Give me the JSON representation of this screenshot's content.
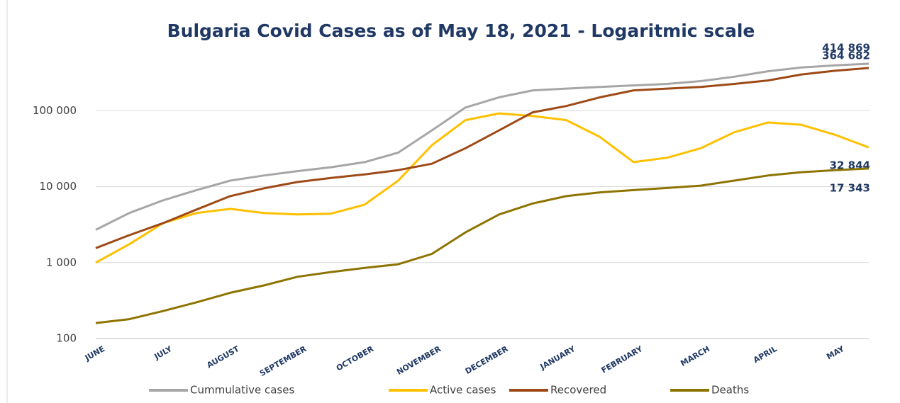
{
  "chart_data": {
    "type": "line",
    "title": "Bulgaria Covid Cases as of May 18, 2021 - Logaritmic scale",
    "categories": [
      "JUNE",
      null,
      "JULY",
      null,
      "AUGUST",
      null,
      "SEPTEMBER",
      null,
      "OCTOBER",
      null,
      "NOVEMBER",
      null,
      "DECEMBER",
      null,
      "JANUARY",
      null,
      "FEBRUARY",
      null,
      "MARCH",
      null,
      "APRIL",
      null,
      "MAY",
      null
    ],
    "series": [
      {
        "name": "Cummulative cases",
        "color": "#a6a6a6",
        "values": [
          2700,
          4500,
          6600,
          9000,
          12000,
          14000,
          16000,
          18000,
          21000,
          28000,
          55000,
          110000,
          150000,
          185000,
          195000,
          205000,
          215000,
          225000,
          245000,
          280000,
          330000,
          370000,
          395000,
          414869
        ],
        "value_labels": [
          null,
          null,
          null,
          null,
          null,
          null,
          null,
          null,
          null,
          null,
          null,
          null,
          null,
          null,
          null,
          null,
          null,
          null,
          null,
          null,
          null,
          null,
          null,
          "414 869"
        ]
      },
      {
        "name": "Active cases",
        "color": "#ffc000",
        "values": [
          1000,
          1750,
          3300,
          4500,
          5100,
          4500,
          4300,
          4400,
          5800,
          12000,
          35000,
          75000,
          92000,
          85000,
          75000,
          45000,
          21000,
          24000,
          32000,
          52000,
          70000,
          65000,
          48000,
          32844
        ],
        "value_labels": [
          null,
          null,
          null,
          null,
          null,
          null,
          null,
          null,
          null,
          null,
          null,
          null,
          null,
          null,
          null,
          null,
          null,
          null,
          null,
          null,
          null,
          null,
          null,
          "32 844"
        ]
      },
      {
        "name": "Recovered",
        "color": "#9e4a17",
        "values": [
          1550,
          2300,
          3300,
          5000,
          7500,
          9500,
          11500,
          13000,
          14500,
          16500,
          20000,
          32000,
          55000,
          95000,
          115000,
          150000,
          185000,
          195000,
          205000,
          225000,
          250000,
          300000,
          335000,
          364682
        ],
        "value_labels": [
          null,
          null,
          null,
          null,
          null,
          null,
          null,
          null,
          null,
          null,
          null,
          null,
          null,
          null,
          null,
          null,
          null,
          null,
          null,
          null,
          null,
          null,
          null,
          "364 682"
        ]
      },
      {
        "name": "Deaths",
        "color": "#8d7400",
        "values": [
          160,
          180,
          230,
          300,
          400,
          500,
          650,
          750,
          850,
          950,
          1300,
          2500,
          4300,
          6000,
          7500,
          8400,
          9000,
          9600,
          10300,
          12000,
          14000,
          15500,
          16500,
          17343
        ],
        "value_labels": [
          null,
          null,
          null,
          null,
          null,
          null,
          null,
          null,
          null,
          null,
          null,
          null,
          null,
          null,
          null,
          null,
          null,
          null,
          null,
          null,
          null,
          null,
          null,
          "17 343"
        ]
      }
    ],
    "ylim": [
      100,
      1000000
    ],
    "log_scale": true,
    "yticks": [
      100,
      {
        "value": 1000,
        "label": "1 000"
      },
      {
        "value": 10000,
        "label": "10 000"
      },
      {
        "value": 100000,
        "label": "100 000"
      }
    ],
    "grid": true,
    "legend": "bottom"
  }
}
